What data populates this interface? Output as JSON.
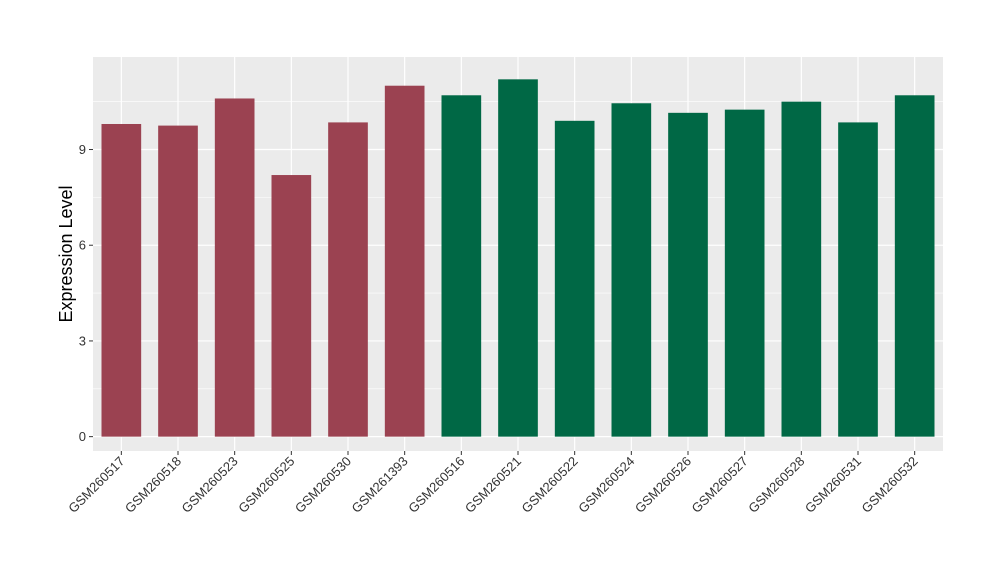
{
  "chart_data": {
    "type": "bar",
    "title": "",
    "xlabel": "",
    "ylabel": "Expression Level",
    "ylim": [
      -0.45,
      11.9
    ],
    "yticks": [
      0,
      3,
      6,
      9
    ],
    "grid": true,
    "categories": [
      "GSM260517",
      "GSM260518",
      "GSM260523",
      "GSM260525",
      "GSM260530",
      "GSM261393",
      "GSM260516",
      "GSM260521",
      "GSM260522",
      "GSM260524",
      "GSM260526",
      "GSM260527",
      "GSM260528",
      "GSM260531",
      "GSM260532"
    ],
    "values": [
      9.8,
      9.75,
      10.6,
      8.2,
      9.85,
      11.0,
      10.7,
      11.2,
      9.9,
      10.45,
      10.15,
      10.25,
      10.5,
      9.85,
      10.7
    ],
    "bar_colors": [
      "#9b4251",
      "#9b4251",
      "#9b4251",
      "#9b4251",
      "#9b4251",
      "#9b4251",
      "#006845",
      "#006845",
      "#006845",
      "#006845",
      "#006845",
      "#006845",
      "#006845",
      "#006845",
      "#006845"
    ],
    "panel_background": "#ebebeb",
    "grid_color": "#ffffff"
  }
}
